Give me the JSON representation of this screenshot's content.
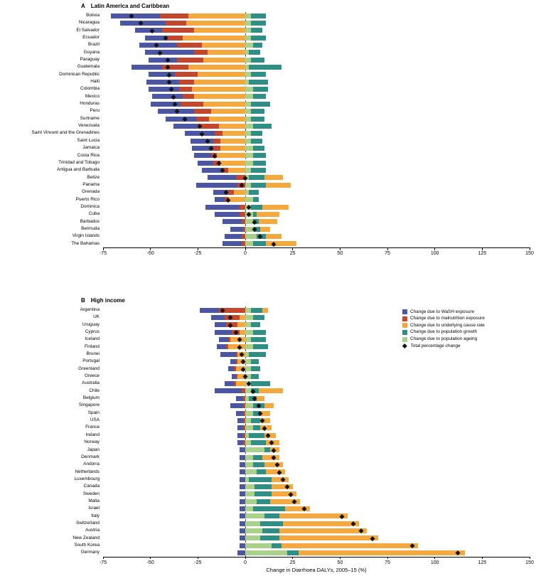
{
  "figure": {
    "panel_a_letter": "A",
    "panel_a_title": "Latin America and Caribbean",
    "panel_b_letter": "B",
    "panel_b_title": "High income",
    "xlabel": "Change in Diarrhoea DALYs, 2005–15 (%)"
  },
  "colors": {
    "wash": "#4c57a4",
    "malnutrition": "#c2472c",
    "cause_rate": "#f3a93e",
    "growth": "#2f8e85",
    "ageing": "#aad189",
    "diamond": "#141414"
  },
  "legend": {
    "items": [
      {
        "key": "wash",
        "label": "Change due to WaSH exposure"
      },
      {
        "key": "malnutrition",
        "label": "Change due to malnutrition exposure"
      },
      {
        "key": "cause_rate",
        "label": "Change due to underlying cause rate"
      },
      {
        "key": "growth",
        "label": "Change due to population growth"
      },
      {
        "key": "ageing",
        "label": "Change due to population ageing"
      }
    ],
    "diamond_label": "Total percentage change"
  },
  "chart_data": [
    {
      "type": "bar",
      "orientation": "horizontal",
      "stacked": true,
      "panel": "A",
      "title": "Latin America and Caribbean",
      "xlabel": "Change in Diarrhoea DALYs, 2005–15 (%)",
      "xlim": [
        -75,
        150
      ],
      "x_ticks": [
        -75,
        -50,
        -25,
        0,
        25,
        50,
        75,
        100,
        125,
        150
      ],
      "series_keys": [
        "wash",
        "malnutrition",
        "cause_rate",
        "growth",
        "ageing"
      ],
      "stack_order_from_zero": [
        "ageing",
        "growth",
        "cause_rate",
        "malnutrition",
        "wash"
      ],
      "reference_line_x": 0,
      "rows": [
        {
          "country": "Bolivia",
          "wash": -26,
          "malnutrition": -15,
          "cause_rate": -30,
          "growth": 8,
          "ageing": 3,
          "total": -60
        },
        {
          "country": "Nicaragua",
          "wash": -24,
          "malnutrition": -11,
          "cause_rate": -31,
          "growth": 8,
          "ageing": 3,
          "total": -55
        },
        {
          "country": "El Salvador",
          "wash": -14,
          "malnutrition": -17,
          "cause_rate": -27,
          "growth": 6,
          "ageing": 3,
          "total": -49
        },
        {
          "country": "Ecuador",
          "wash": -12,
          "malnutrition": -8,
          "cause_rate": -33,
          "growth": 8,
          "ageing": 3,
          "total": -42
        },
        {
          "country": "Brazil",
          "wash": -20,
          "malnutrition": -13,
          "cause_rate": -23,
          "growth": 5,
          "ageing": 4,
          "total": -47
        },
        {
          "country": "Guyana",
          "wash": -26,
          "malnutrition": -7,
          "cause_rate": -20,
          "growth": 6,
          "ageing": 2,
          "total": -45
        },
        {
          "country": "Paraguay",
          "wash": -15,
          "malnutrition": -14,
          "cause_rate": -22,
          "growth": 7,
          "ageing": 3,
          "total": -41
        },
        {
          "country": "Guatemala",
          "wash": -16,
          "malnutrition": -14,
          "cause_rate": -30,
          "growth": 17,
          "ageing": 2,
          "total": -41
        },
        {
          "country": "Dominican Republic",
          "wash": -14,
          "malnutrition": -12,
          "cause_rate": -25,
          "growth": 8,
          "ageing": 3,
          "total": -40
        },
        {
          "country": "Haiti",
          "wash": -17,
          "malnutrition": -8,
          "cause_rate": -27,
          "growth": 10,
          "ageing": 2,
          "total": -40
        },
        {
          "country": "Colombia",
          "wash": -16,
          "malnutrition": -7,
          "cause_rate": -28,
          "growth": 8,
          "ageing": 4,
          "total": -39
        },
        {
          "country": "Mexico",
          "wash": -16,
          "malnutrition": -6,
          "cause_rate": -27,
          "growth": 7,
          "ageing": 4,
          "total": -38
        },
        {
          "country": "Honduras",
          "wash": -16,
          "malnutrition": -12,
          "cause_rate": -22,
          "growth": 10,
          "ageing": 3,
          "total": -37
        },
        {
          "country": "Peru",
          "wash": -19,
          "malnutrition": -9,
          "cause_rate": -18,
          "growth": 7,
          "ageing": 3,
          "total": -36
        },
        {
          "country": "Suriname",
          "wash": -16,
          "malnutrition": -7,
          "cause_rate": -19,
          "growth": 7,
          "ageing": 3,
          "total": -32
        },
        {
          "country": "Venezuela",
          "wash": -13,
          "malnutrition": -11,
          "cause_rate": -14,
          "growth": 10,
          "ageing": 4,
          "total": -24
        },
        {
          "country": "Saint Vincent and the Grenadines",
          "wash": -16,
          "malnutrition": -4,
          "cause_rate": -12,
          "growth": 6,
          "ageing": 3,
          "total": -23
        },
        {
          "country": "Saint Lucia",
          "wash": -12,
          "malnutrition": -4,
          "cause_rate": -13,
          "growth": 6,
          "ageing": 3,
          "total": -20
        },
        {
          "country": "Jamaica",
          "wash": -11,
          "malnutrition": -4,
          "cause_rate": -13,
          "growth": 6,
          "ageing": 4,
          "total": -18
        },
        {
          "country": "Costa Rica",
          "wash": -9,
          "malnutrition": -3,
          "cause_rate": -15,
          "growth": 7,
          "ageing": 4,
          "total": -16
        },
        {
          "country": "Trinidad and Tobago",
          "wash": -8,
          "malnutrition": -4,
          "cause_rate": -13,
          "growth": 7,
          "ageing": 4,
          "total": -14
        },
        {
          "country": "Antigua and Barbuda",
          "wash": -11,
          "malnutrition": -3,
          "cause_rate": -9,
          "growth": 8,
          "ageing": 3,
          "total": -12
        },
        {
          "country": "Belize",
          "wash": -15,
          "malnutrition": -5,
          "cause_rate": 10,
          "growth": 8,
          "ageing": 2,
          "total": 0
        },
        {
          "country": "Panama",
          "wash": -22,
          "malnutrition": -4,
          "cause_rate": 13,
          "growth": 8,
          "ageing": 3,
          "total": -2
        },
        {
          "country": "Grenada",
          "wash": -8,
          "malnutrition": -3,
          "cause_rate": -6,
          "growth": 5,
          "ageing": 2,
          "total": -10
        },
        {
          "country": "Puerto Rico",
          "wash": -5,
          "malnutrition": -2,
          "cause_rate": -9,
          "growth": 3,
          "ageing": 4,
          "total": -9
        },
        {
          "country": "Dominica",
          "wash": -18,
          "malnutrition": -3,
          "cause_rate": 14,
          "growth": 6,
          "ageing": 3,
          "total": 2
        },
        {
          "country": "Cuba",
          "wash": -13,
          "malnutrition": -3,
          "cause_rate": 12,
          "growth": 2,
          "ageing": 4,
          "total": 2
        },
        {
          "country": "Barbados",
          "wash": -10,
          "malnutrition": -2,
          "cause_rate": 10,
          "growth": 3,
          "ageing": 4,
          "total": 5
        },
        {
          "country": "Bermuda",
          "wash": -7,
          "malnutrition": -1,
          "cause_rate": 5,
          "growth": 3,
          "ageing": 5,
          "total": 5
        },
        {
          "country": "Virgin Islands",
          "wash": -9,
          "malnutrition": -2,
          "cause_rate": 8,
          "growth": 5,
          "ageing": 6,
          "total": 8
        },
        {
          "country": "The Bahamas",
          "wash": -10,
          "malnutrition": -2,
          "cause_rate": 16,
          "growth": 7,
          "ageing": 4,
          "total": 15
        }
      ]
    },
    {
      "type": "bar",
      "orientation": "horizontal",
      "stacked": true,
      "panel": "B",
      "title": "High income",
      "xlabel": "Change in Diarrhoea DALYs, 2005–15 (%)",
      "xlim": [
        -75,
        150
      ],
      "x_ticks": [
        -75,
        -50,
        -25,
        0,
        25,
        50,
        75,
        100,
        125,
        150
      ],
      "series_keys": [
        "wash",
        "malnutrition",
        "cause_rate",
        "growth",
        "ageing"
      ],
      "stack_order_from_zero": [
        "ageing",
        "growth",
        "cause_rate",
        "malnutrition",
        "wash"
      ],
      "reference_line_x": 0,
      "rows": [
        {
          "country": "Argentina",
          "wash": -10,
          "malnutrition": -14,
          "cause_rate": 3,
          "growth": 6,
          "ageing": 3,
          "total": -12
        },
        {
          "country": "UK",
          "wash": -7,
          "malnutrition": -8,
          "cause_rate": -3,
          "growth": 6,
          "ageing": 4,
          "total": -8
        },
        {
          "country": "Uruguay",
          "wash": -6,
          "malnutrition": -6,
          "cause_rate": -4,
          "growth": 5,
          "ageing": 3,
          "total": -8
        },
        {
          "country": "Cyprus",
          "wash": -9,
          "malnutrition": -4,
          "cause_rate": -3,
          "growth": 7,
          "ageing": 4,
          "total": -5
        },
        {
          "country": "Iceland",
          "wash": -5,
          "malnutrition": -1,
          "cause_rate": -8,
          "growth": 8,
          "ageing": 3,
          "total": -3
        },
        {
          "country": "Finland",
          "wash": -5,
          "malnutrition": -1,
          "cause_rate": -9,
          "growth": 8,
          "ageing": 4,
          "total": -3
        },
        {
          "country": "Brunei",
          "wash": -8,
          "malnutrition": -1,
          "cause_rate": -4,
          "growth": 9,
          "ageing": 2,
          "total": -2
        },
        {
          "country": "Portugal",
          "wash": -3,
          "malnutrition": -1,
          "cause_rate": -4,
          "growth": 4,
          "ageing": 3,
          "total": -1
        },
        {
          "country": "Greenland",
          "wash": -3,
          "malnutrition": -1,
          "cause_rate": -5,
          "growth": 5,
          "ageing": 3,
          "total": -1
        },
        {
          "country": "Greece",
          "wash": -2,
          "malnutrition": -1,
          "cause_rate": -4,
          "growth": 4,
          "ageing": 3,
          "total": 0
        },
        {
          "country": "Australia",
          "wash": -5,
          "malnutrition": -1,
          "cause_rate": -5,
          "growth": 10,
          "ageing": 3,
          "total": 2
        },
        {
          "country": "Chile",
          "wash": -14,
          "malnutrition": -2,
          "cause_rate": 13,
          "growth": 4,
          "ageing": 3,
          "total": 4
        },
        {
          "country": "Belgium",
          "wash": -4,
          "malnutrition": -1,
          "cause_rate": 4,
          "growth": 4,
          "ageing": 2,
          "total": 5
        },
        {
          "country": "Singapore",
          "wash": -7,
          "malnutrition": -1,
          "cause_rate": 5,
          "growth": 6,
          "ageing": 4,
          "total": 7
        },
        {
          "country": "Spain",
          "wash": -4,
          "malnutrition": -1,
          "cause_rate": 5,
          "growth": 4,
          "ageing": 4,
          "total": 8
        },
        {
          "country": "USA",
          "wash": -3,
          "malnutrition": -1,
          "cause_rate": 5,
          "growth": 5,
          "ageing": 3,
          "total": 9
        },
        {
          "country": "France",
          "wash": -3,
          "malnutrition": -1,
          "cause_rate": 6,
          "growth": 4,
          "ageing": 4,
          "total": 10
        },
        {
          "country": "Ireland",
          "wash": -3,
          "malnutrition": -1,
          "cause_rate": 6,
          "growth": 8,
          "ageing": 2,
          "total": 12
        },
        {
          "country": "Norway",
          "wash": -3,
          "malnutrition": -1,
          "cause_rate": 7,
          "growth": 8,
          "ageing": 3,
          "total": 14
        },
        {
          "country": "Japan",
          "wash": -3,
          "malnutrition": 0,
          "cause_rate": 5,
          "growth": 3,
          "ageing": 10,
          "total": 15
        },
        {
          "country": "Denmark",
          "wash": -3,
          "malnutrition": 0,
          "cause_rate": 9,
          "growth": 5,
          "ageing": 4,
          "total": 15
        },
        {
          "country": "Andorra",
          "wash": -3,
          "malnutrition": 0,
          "cause_rate": 10,
          "growth": 6,
          "ageing": 4,
          "total": 17
        },
        {
          "country": "Netherlands",
          "wash": -3,
          "malnutrition": 0,
          "cause_rate": 10,
          "growth": 5,
          "ageing": 6,
          "total": 18
        },
        {
          "country": "Luxembourg",
          "wash": -3,
          "malnutrition": 0,
          "cause_rate": 9,
          "growth": 12,
          "ageing": 2,
          "total": 20
        },
        {
          "country": "Canada",
          "wash": -3,
          "malnutrition": 0,
          "cause_rate": 11,
          "growth": 9,
          "ageing": 5,
          "total": 22
        },
        {
          "country": "Sweden",
          "wash": -3,
          "malnutrition": 0,
          "cause_rate": 13,
          "growth": 9,
          "ageing": 5,
          "total": 24
        },
        {
          "country": "Malta",
          "wash": -3,
          "malnutrition": 0,
          "cause_rate": 16,
          "growth": 7,
          "ageing": 6,
          "total": 26
        },
        {
          "country": "Israel",
          "wash": -3,
          "malnutrition": 0,
          "cause_rate": 13,
          "growth": 17,
          "ageing": 4,
          "total": 31
        },
        {
          "country": "Italy",
          "wash": -3,
          "malnutrition": 0,
          "cause_rate": 36,
          "growth": 8,
          "ageing": 10,
          "total": 51
        },
        {
          "country": "Switzerland",
          "wash": -3,
          "malnutrition": 0,
          "cause_rate": 40,
          "growth": 12,
          "ageing": 8,
          "total": 57
        },
        {
          "country": "Austria",
          "wash": -3,
          "malnutrition": 0,
          "cause_rate": 46,
          "growth": 9,
          "ageing": 9,
          "total": 61
        },
        {
          "country": "New Zealand",
          "wash": -3,
          "malnutrition": 0,
          "cause_rate": 52,
          "growth": 10,
          "ageing": 8,
          "total": 67
        },
        {
          "country": "South Korea",
          "wash": -3,
          "malnutrition": 0,
          "cause_rate": 72,
          "growth": 5,
          "ageing": 14,
          "total": 88
        },
        {
          "country": "Germany",
          "wash": -4,
          "malnutrition": 0,
          "cause_rate": 88,
          "growth": 6,
          "ageing": 22,
          "total": 112
        }
      ]
    }
  ]
}
